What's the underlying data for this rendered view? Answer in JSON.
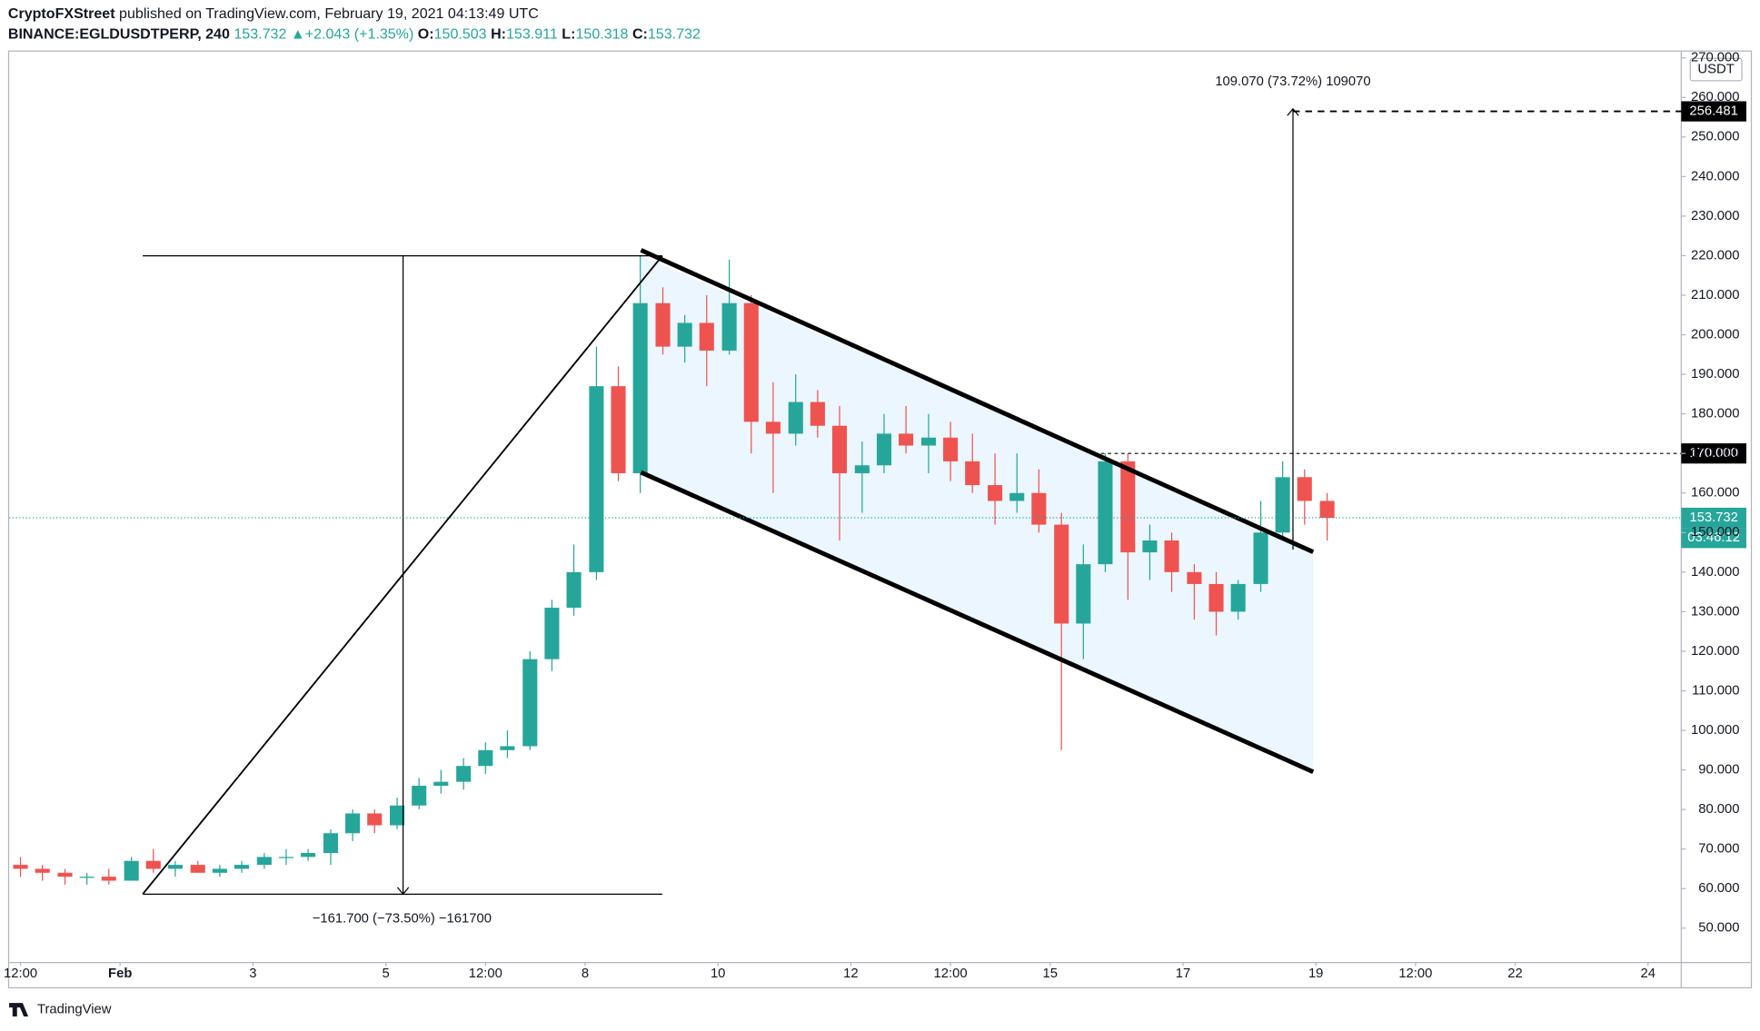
{
  "header": {
    "publisher": "CryptoFXStreet",
    "published": "published on TradingView.com, February 19, 2021 04:13:49 UTC",
    "symbol": "BINANCE:EGLDUSDTPERP, 240",
    "last": "153.732",
    "change": "▲+2.043 (+1.35%)",
    "ohlc": [
      {
        "key": "O:",
        "value": "150.503"
      },
      {
        "key": "H:",
        "value": "153.911"
      },
      {
        "key": "L:",
        "value": "150.318"
      },
      {
        "key": "C:",
        "value": "153.732"
      }
    ]
  },
  "chart_data": {
    "type": "candlestick",
    "x": [
      -0.5,
      -0.17,
      0.17,
      0.5,
      0.83,
      1.17,
      1.5,
      1.83,
      2.17,
      2.5,
      2.83,
      3.17,
      3.5,
      3.83,
      4.17,
      4.5,
      4.83,
      5.17,
      5.5,
      5.83,
      6.17,
      6.5,
      6.83,
      7.17,
      7.5,
      7.83,
      8.17,
      8.5,
      8.83,
      9.17,
      9.5,
      9.83,
      10.17,
      10.5,
      10.83,
      11.17,
      11.5,
      11.83,
      12.17,
      12.5,
      12.83,
      13.17,
      13.5,
      13.83,
      14.17,
      14.5,
      14.83,
      15.17,
      15.5,
      15.83,
      16.17,
      16.5,
      16.83,
      17.17,
      17.5,
      17.83,
      18.17,
      18.5,
      18.83,
      19.17
    ],
    "open": [
      66,
      65,
      64,
      63,
      63,
      62,
      67,
      65,
      66,
      64,
      65,
      66,
      68,
      68,
      69,
      74,
      79,
      76,
      81,
      86,
      87,
      91,
      95,
      96,
      118,
      131,
      140,
      187,
      165,
      208,
      197,
      203,
      196,
      208,
      178,
      175,
      183,
      177,
      165,
      167,
      175,
      172,
      174,
      168,
      162,
      158,
      160,
      152,
      127,
      142,
      168,
      145,
      148,
      140,
      137,
      130,
      137,
      150,
      164,
      158
    ],
    "high": [
      68,
      66,
      65,
      64,
      65,
      68,
      70,
      67,
      67,
      66,
      67,
      69,
      70,
      70,
      75,
      80,
      80,
      83,
      88,
      90,
      93,
      97,
      100,
      120,
      133,
      147,
      197,
      192,
      220,
      212,
      205,
      210,
      219,
      210,
      188,
      190,
      186,
      182,
      173,
      180,
      182,
      180,
      178,
      175,
      170,
      170,
      166,
      155,
      147,
      170,
      170,
      152,
      150,
      142,
      140,
      138,
      158,
      168,
      166,
      160
    ],
    "low": [
      63,
      62,
      61,
      61,
      61,
      62,
      64,
      63,
      64,
      63,
      64,
      65,
      66,
      67,
      66,
      72,
      74,
      75,
      80,
      84,
      85,
      89,
      93,
      95,
      115,
      129,
      138,
      163,
      160,
      195,
      193,
      187,
      195,
      170,
      160,
      172,
      174,
      148,
      155,
      165,
      170,
      165,
      163,
      160,
      152,
      155,
      150,
      95,
      118,
      140,
      133,
      138,
      135,
      128,
      124,
      128,
      135,
      148,
      152,
      148
    ],
    "close": [
      65,
      64,
      63,
      63,
      62,
      67,
      65,
      66,
      64,
      65,
      66,
      68,
      68,
      69,
      74,
      79,
      76,
      81,
      86,
      87,
      91,
      95,
      96,
      118,
      131,
      140,
      187,
      165,
      208,
      197,
      203,
      196,
      208,
      178,
      175,
      183,
      177,
      165,
      167,
      175,
      172,
      174,
      168,
      162,
      158,
      160,
      152,
      127,
      142,
      168,
      145,
      148,
      140,
      137,
      130,
      137,
      150,
      164,
      158,
      153.732
    ],
    "xlim": [
      -0.67,
      24.5
    ],
    "xticks": [
      {
        "value": -0.5,
        "label": "12:00"
      },
      {
        "value": 1,
        "label": "Feb"
      },
      {
        "value": 3,
        "label": "3"
      },
      {
        "value": 5,
        "label": "5"
      },
      {
        "value": 6.5,
        "label": "12:00"
      },
      {
        "value": 8,
        "label": "8"
      },
      {
        "value": 10,
        "label": "10"
      },
      {
        "value": 12,
        "label": "12"
      },
      {
        "value": 13.5,
        "label": "12:00"
      },
      {
        "value": 15,
        "label": "15"
      },
      {
        "value": 17,
        "label": "17"
      },
      {
        "value": 19,
        "label": "19"
      },
      {
        "value": 20.5,
        "label": "12:00"
      },
      {
        "value": 22,
        "label": "22"
      },
      {
        "value": 24,
        "label": "24"
      }
    ],
    "ylim": [
      41.3,
      271.3
    ],
    "yticks": [
      {
        "value": 50,
        "label": "50.000"
      },
      {
        "value": 60,
        "label": "60.000"
      },
      {
        "value": 70,
        "label": "70.000"
      },
      {
        "value": 80,
        "label": "80.000"
      },
      {
        "value": 90,
        "label": "90.000"
      },
      {
        "value": 100,
        "label": "100.000"
      },
      {
        "value": 110,
        "label": "110.000"
      },
      {
        "value": 120,
        "label": "120.000"
      },
      {
        "value": 130,
        "label": "130.000"
      },
      {
        "value": 140,
        "label": "140.000"
      },
      {
        "value": 150,
        "label": "150.000"
      },
      {
        "value": 160,
        "label": "160.000"
      },
      {
        "value": 170,
        "label": "170.000"
      },
      {
        "value": 180,
        "label": "180.000"
      },
      {
        "value": 190,
        "label": "190.000"
      },
      {
        "value": 200,
        "label": "200.000"
      },
      {
        "value": 210,
        "label": "210.000"
      },
      {
        "value": 220,
        "label": "220.000"
      },
      {
        "value": 230,
        "label": "230.000"
      },
      {
        "value": 240,
        "label": "240.000"
      },
      {
        "value": 250,
        "label": "250.000"
      },
      {
        "value": 260,
        "label": "260.000"
      },
      {
        "value": 270,
        "label": "270.000"
      }
    ],
    "currency": "USDT",
    "colors": {
      "up": "#26a69a",
      "down": "#ef5350"
    },
    "annotations": {
      "up_measure": "109.070 (73.72%) 109070",
      "down_measure": "−161.700 (−73.50%) −161700"
    },
    "price_tags": [
      {
        "value": 256.481,
        "label": "256.481"
      },
      {
        "value": 170,
        "label": "170.000"
      }
    ],
    "last_price": {
      "value": 153.732,
      "label": "153.732"
    },
    "countdown": "03:46:12"
  },
  "footer": {
    "brand": "TradingView"
  }
}
